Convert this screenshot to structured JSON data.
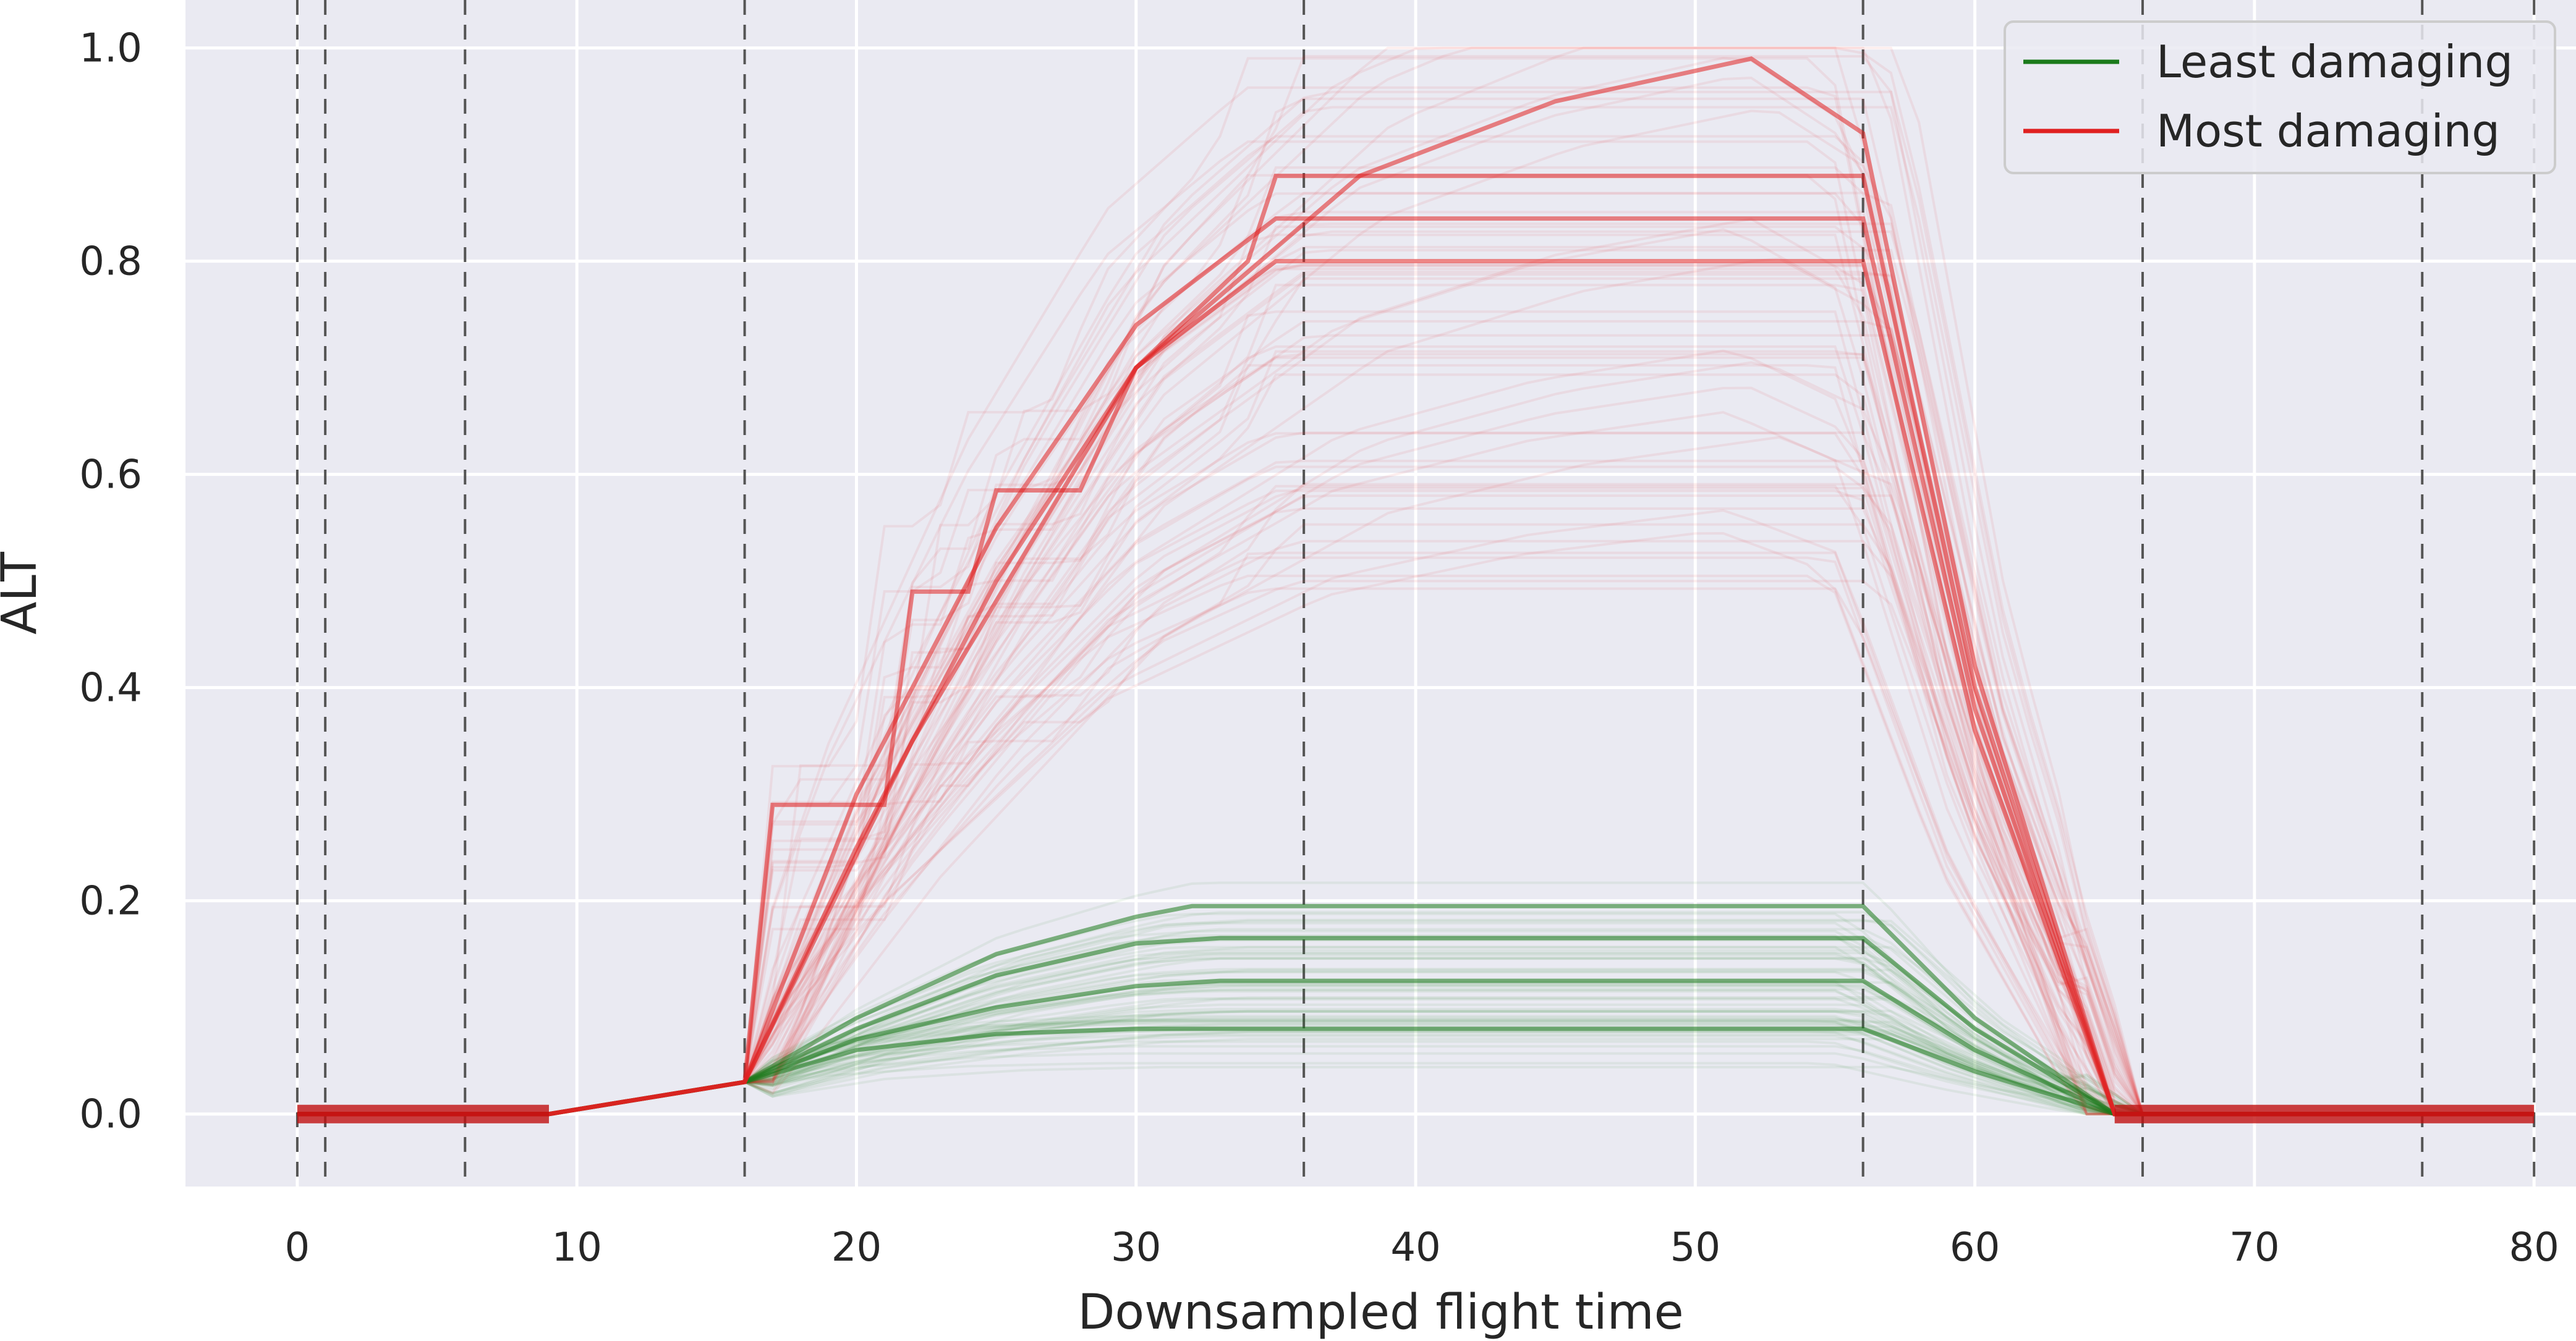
{
  "chart_data": {
    "type": "line",
    "xlabel": "Downsampled flight time",
    "ylabel": "ALT",
    "xlim": [
      -4,
      81.5
    ],
    "ylim": [
      -0.068,
      1.045
    ],
    "x_ticks": [
      0,
      10,
      20,
      30,
      40,
      50,
      60,
      70,
      80
    ],
    "y_ticks": [
      0.0,
      0.2,
      0.4,
      0.6,
      0.8,
      1.0
    ],
    "x_tick_labels": [
      "0",
      "10",
      "20",
      "30",
      "40",
      "50",
      "60",
      "70",
      "80"
    ],
    "y_tick_labels": [
      "0.0",
      "0.2",
      "0.4",
      "0.6",
      "0.8",
      "1.0"
    ],
    "grid": true,
    "vertical_dashed_lines_x": [
      0,
      1,
      6,
      16,
      36,
      56,
      66,
      76,
      80
    ],
    "legend_placement": "top-right",
    "colors": {
      "background": "#eaeaf2",
      "grid": "#ffffff",
      "green": "#1b7a1b",
      "red": "#e02020"
    },
    "series": [
      {
        "name": "Least damaging",
        "color": "#1b7a1b",
        "representative": [
          {
            "x": [
              0,
              9,
              16,
              20,
              25,
              30,
              35,
              56,
              60,
              65,
              80
            ],
            "y": [
              0,
              0,
              0.03,
              0.06,
              0.075,
              0.08,
              0.08,
              0.08,
              0.04,
              0,
              0
            ]
          },
          {
            "x": [
              0,
              9,
              16,
              20,
              25,
              30,
              33,
              56,
              60,
              65,
              80
            ],
            "y": [
              0,
              0,
              0.03,
              0.07,
              0.1,
              0.12,
              0.125,
              0.125,
              0.06,
              0,
              0
            ]
          },
          {
            "x": [
              0,
              9,
              16,
              20,
              25,
              30,
              33,
              56,
              60,
              65,
              80
            ],
            "y": [
              0,
              0,
              0.03,
              0.08,
              0.13,
              0.16,
              0.165,
              0.165,
              0.08,
              0,
              0
            ]
          },
          {
            "x": [
              0,
              9,
              16,
              20,
              25,
              30,
              32,
              56,
              60,
              65,
              80
            ],
            "y": [
              0,
              0,
              0.03,
              0.09,
              0.15,
              0.185,
              0.195,
              0.195,
              0.09,
              0,
              0
            ]
          }
        ]
      },
      {
        "name": "Most damaging",
        "color": "#e02020",
        "representative": [
          {
            "x": [
              0,
              9,
              16,
              17,
              21,
              22,
              24,
              25,
              28,
              30,
              34,
              35,
              56,
              60,
              65,
              80
            ],
            "y": [
              0,
              0,
              0.03,
              0.29,
              0.29,
              0.49,
              0.49,
              0.585,
              0.585,
              0.7,
              0.8,
              0.88,
              0.88,
              0.4,
              0,
              0
            ]
          },
          {
            "x": [
              0,
              9,
              16,
              20,
              25,
              30,
              35,
              56,
              60,
              65,
              80
            ],
            "y": [
              0,
              0,
              0.03,
              0.3,
              0.55,
              0.74,
              0.84,
              0.84,
              0.38,
              0,
              0
            ]
          },
          {
            "x": [
              0,
              9,
              16,
              20,
              25,
              30,
              35,
              56,
              60,
              65,
              80
            ],
            "y": [
              0,
              0,
              0.03,
              0.25,
              0.5,
              0.7,
              0.8,
              0.8,
              0.36,
              0,
              0
            ]
          },
          {
            "x": [
              0,
              9,
              16,
              22,
              30,
              38,
              45,
              52,
              56,
              60,
              65,
              80
            ],
            "y": [
              0,
              0,
              0.03,
              0.35,
              0.7,
              0.88,
              0.95,
              0.99,
              0.92,
              0.42,
              0,
              0
            ]
          }
        ]
      }
    ]
  }
}
